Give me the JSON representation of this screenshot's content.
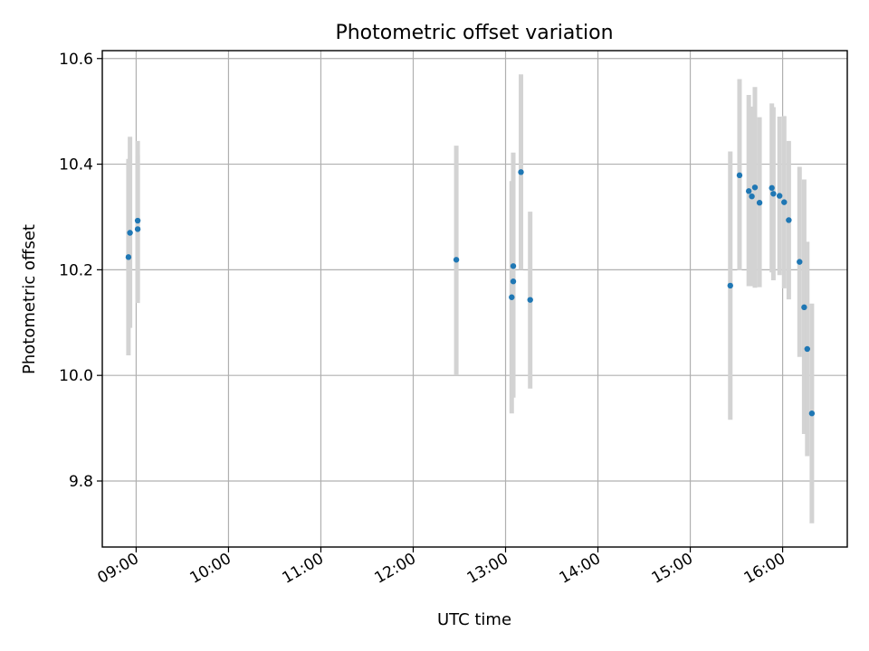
{
  "chart_data": {
    "type": "scatter",
    "title": "Photometric offset variation",
    "xlabel": "UTC time",
    "ylabel": "Photometric offset",
    "x_is_time": true,
    "xlim": [
      "08:38",
      "16:42"
    ],
    "ylim": [
      9.675,
      10.615
    ],
    "xticks": [
      "09:00",
      "10:00",
      "11:00",
      "12:00",
      "13:00",
      "14:00",
      "15:00",
      "16:00"
    ],
    "yticks": [
      9.8,
      10.0,
      10.2,
      10.4,
      10.6
    ],
    "ytick_labels": [
      "9.8",
      "10.0",
      "10.2",
      "10.4",
      "10.6"
    ],
    "grid": true,
    "marker_color": "#1f77b4",
    "errorbar_color": "#d3d3d3",
    "series": [
      {
        "points": [
          {
            "x": "08:55",
            "y": 10.224,
            "lo": 10.038,
            "hi": 10.41
          },
          {
            "x": "08:56",
            "y": 10.27,
            "lo": 10.09,
            "hi": 10.452
          },
          {
            "x": "09:01",
            "y": 10.277,
            "lo": 10.137,
            "hi": 10.417
          },
          {
            "x": "09:01",
            "y": 10.293,
            "lo": 10.143,
            "hi": 10.444
          },
          {
            "x": "12:28",
            "y": 10.219,
            "lo": 10.0,
            "hi": 10.435
          },
          {
            "x": "13:04",
            "y": 10.148,
            "lo": 9.928,
            "hi": 10.368
          },
          {
            "x": "13:05",
            "y": 10.178,
            "lo": 9.958,
            "hi": 10.398
          },
          {
            "x": "13:05",
            "y": 10.207,
            "lo": 9.992,
            "hi": 10.422
          },
          {
            "x": "13:10",
            "y": 10.385,
            "lo": 10.2,
            "hi": 10.57
          },
          {
            "x": "13:16",
            "y": 10.143,
            "lo": 9.975,
            "hi": 10.31
          },
          {
            "x": "15:26",
            "y": 10.17,
            "lo": 9.916,
            "hi": 10.424
          },
          {
            "x": "15:32",
            "y": 10.379,
            "lo": 10.199,
            "hi": 10.561
          },
          {
            "x": "15:38",
            "y": 10.349,
            "lo": 10.169,
            "hi": 10.531
          },
          {
            "x": "15:40",
            "y": 10.339,
            "lo": 10.169,
            "hi": 10.509
          },
          {
            "x": "15:42",
            "y": 10.356,
            "lo": 10.166,
            "hi": 10.546
          },
          {
            "x": "15:45",
            "y": 10.327,
            "lo": 10.167,
            "hi": 10.489
          },
          {
            "x": "15:53",
            "y": 10.355,
            "lo": 10.195,
            "hi": 10.515
          },
          {
            "x": "15:54",
            "y": 10.344,
            "lo": 10.18,
            "hi": 10.508
          },
          {
            "x": "15:58",
            "y": 10.34,
            "lo": 10.19,
            "hi": 10.49
          },
          {
            "x": "16:01",
            "y": 10.328,
            "lo": 10.165,
            "hi": 10.491
          },
          {
            "x": "16:04",
            "y": 10.294,
            "lo": 10.144,
            "hi": 10.444
          },
          {
            "x": "16:11",
            "y": 10.215,
            "lo": 10.035,
            "hi": 10.395
          },
          {
            "x": "16:14",
            "y": 10.129,
            "lo": 9.889,
            "hi": 10.371
          },
          {
            "x": "16:16",
            "y": 10.05,
            "lo": 9.847,
            "hi": 10.253
          },
          {
            "x": "16:19",
            "y": 9.928,
            "lo": 9.72,
            "hi": 10.136
          }
        ]
      }
    ]
  }
}
